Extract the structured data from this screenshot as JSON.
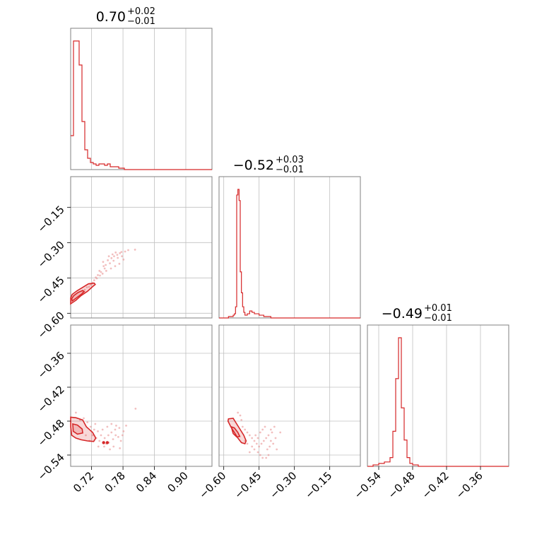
{
  "chart_data": {
    "type": "corner",
    "color": "#d62728",
    "titles": [
      {
        "value": "0.70",
        "upper": "+0.02",
        "lower": "−0.01"
      },
      {
        "value": "−0.52",
        "upper": "+0.03",
        "lower": "−0.01"
      },
      {
        "value": "−0.49",
        "upper": "+0.01",
        "lower": "−0.01"
      }
    ],
    "params": [
      {
        "range": [
          0.68,
          0.95
        ],
        "ticks": [
          0.72,
          0.78,
          0.84,
          0.9
        ],
        "tick_labels": [
          "0.72",
          "0.78",
          "0.84",
          "0.90"
        ]
      },
      {
        "range": [
          -0.62,
          -0.02
        ],
        "ticks": [
          -0.6,
          -0.45,
          -0.3,
          -0.15
        ],
        "tick_labels": [
          "−0.60",
          "−0.45",
          "−0.30",
          "−0.15"
        ]
      },
      {
        "range": [
          -0.56,
          -0.31
        ],
        "ticks": [
          -0.54,
          -0.48,
          -0.42,
          -0.36
        ],
        "tick_labels": [
          "−0.54",
          "−0.48",
          "−0.42",
          "−0.36"
        ]
      }
    ],
    "diagonal_hists": [
      {
        "param": 0,
        "peak_values": [
          0.692,
          0.698,
          0.704
        ],
        "edges": [
          0.68,
          0.6854,
          0.6908,
          0.6962,
          0.7016,
          0.707,
          0.7124,
          0.7178,
          0.7232,
          0.7286,
          0.734,
          0.7394,
          0.7448,
          0.7502,
          0.7556,
          0.761,
          0.7664,
          0.7718,
          0.7772,
          0.7826,
          0.788,
          0.95
        ],
        "counts": [
          24,
          91,
          91,
          74,
          34,
          14,
          8,
          5,
          4,
          3,
          4,
          4,
          3,
          4,
          2,
          2,
          2,
          1,
          1,
          0,
          0
        ]
      },
      {
        "param": 1,
        "edges": [
          -0.62,
          -0.6,
          -0.58,
          -0.56,
          -0.555,
          -0.55,
          -0.545,
          -0.54,
          -0.535,
          -0.53,
          -0.525,
          -0.52,
          -0.515,
          -0.51,
          -0.505,
          -0.5,
          -0.495,
          -0.49,
          -0.485,
          -0.48,
          -0.47,
          -0.46,
          -0.45,
          -0.44,
          -0.43,
          -0.42,
          -0.41,
          -0.4,
          -0.38,
          -0.02
        ],
        "counts": [
          0,
          0,
          1,
          2,
          3,
          8,
          88,
          92,
          84,
          33,
          18,
          8,
          4,
          2,
          2,
          3,
          3,
          5,
          5,
          4,
          3,
          3,
          2,
          2,
          1,
          1,
          1,
          0,
          0
        ]
      },
      {
        "param": 2,
        "edges": [
          -0.56,
          -0.55,
          -0.545,
          -0.54,
          -0.535,
          -0.53,
          -0.525,
          -0.52,
          -0.515,
          -0.51,
          -0.505,
          -0.5,
          -0.495,
          -0.49,
          -0.485,
          -0.48,
          -0.475,
          -0.47,
          -0.46,
          -0.31
        ],
        "counts": [
          0,
          1,
          1,
          2,
          2,
          3,
          3,
          6,
          24,
          60,
          88,
          40,
          18,
          6,
          2,
          1,
          1,
          0,
          0
        ]
      }
    ],
    "scatter_panels": [
      {
        "x_param": 0,
        "y_param": 1,
        "samples": [
          [
            0.742,
            -0.382
          ],
          [
            0.751,
            -0.375
          ],
          [
            0.758,
            -0.366
          ],
          [
            0.763,
            -0.358
          ],
          [
            0.769,
            -0.352
          ],
          [
            0.774,
            -0.345
          ],
          [
            0.778,
            -0.358
          ],
          [
            0.781,
            -0.372
          ],
          [
            0.773,
            -0.39
          ],
          [
            0.765,
            -0.4
          ],
          [
            0.757,
            -0.41
          ],
          [
            0.748,
            -0.42
          ],
          [
            0.741,
            -0.432
          ],
          [
            0.736,
            -0.44
          ],
          [
            0.73,
            -0.452
          ],
          [
            0.725,
            -0.46
          ],
          [
            0.747,
            -0.395
          ],
          [
            0.755,
            -0.388
          ],
          [
            0.762,
            -0.377
          ],
          [
            0.77,
            -0.365
          ],
          [
            0.777,
            -0.34
          ],
          [
            0.784,
            -0.338
          ],
          [
            0.79,
            -0.332
          ],
          [
            0.745,
            -0.41
          ],
          [
            0.738,
            -0.425
          ],
          [
            0.732,
            -0.438
          ],
          [
            0.728,
            -0.448
          ],
          [
            0.722,
            -0.47
          ],
          [
            0.718,
            -0.478
          ],
          [
            0.715,
            -0.488
          ],
          [
            0.76,
            -0.35
          ],
          [
            0.766,
            -0.342
          ],
          [
            0.753,
            -0.358
          ],
          [
            0.735,
            -0.42
          ],
          [
            0.743,
            -0.4
          ],
          [
            0.803,
            -0.33
          ],
          [
            0.711,
            -0.49
          ],
          [
            0.707,
            -0.5
          ],
          [
            0.703,
            -0.51
          ],
          [
            0.72,
            -0.475
          ]
        ],
        "contours": [
          [
            [
              0.68,
              -0.56
            ],
            [
              0.69,
              -0.545
            ],
            [
              0.7,
              -0.525
            ],
            [
              0.712,
              -0.507
            ],
            [
              0.722,
              -0.487
            ],
            [
              0.727,
              -0.478
            ],
            [
              0.725,
              -0.472
            ],
            [
              0.714,
              -0.475
            ],
            [
              0.703,
              -0.49
            ],
            [
              0.692,
              -0.505
            ],
            [
              0.683,
              -0.52
            ],
            [
              0.68,
              -0.535
            ]
          ],
          [
            [
              0.683,
              -0.548
            ],
            [
              0.691,
              -0.535
            ],
            [
              0.7,
              -0.52
            ],
            [
              0.706,
              -0.508
            ],
            [
              0.703,
              -0.503
            ],
            [
              0.694,
              -0.512
            ],
            [
              0.686,
              -0.525
            ],
            [
              0.682,
              -0.538
            ]
          ]
        ]
      },
      {
        "x_param": 0,
        "y_param": 2,
        "samples": [
          [
            0.705,
            -0.475
          ],
          [
            0.712,
            -0.482
          ],
          [
            0.718,
            -0.49
          ],
          [
            0.725,
            -0.495
          ],
          [
            0.732,
            -0.498
          ],
          [
            0.738,
            -0.505
          ],
          [
            0.745,
            -0.51
          ],
          [
            0.752,
            -0.505
          ],
          [
            0.758,
            -0.5
          ],
          [
            0.765,
            -0.495
          ],
          [
            0.771,
            -0.508
          ],
          [
            0.776,
            -0.515
          ],
          [
            0.781,
            -0.498
          ],
          [
            0.762,
            -0.525
          ],
          [
            0.755,
            -0.53
          ],
          [
            0.748,
            -0.52
          ],
          [
            0.741,
            -0.495
          ],
          [
            0.735,
            -0.515
          ],
          [
            0.729,
            -0.51
          ],
          [
            0.722,
            -0.505
          ],
          [
            0.716,
            -0.515
          ],
          [
            0.709,
            -0.505
          ],
          [
            0.767,
            -0.488
          ],
          [
            0.773,
            -0.492
          ],
          [
            0.779,
            -0.505
          ],
          [
            0.758,
            -0.485
          ],
          [
            0.75,
            -0.49
          ],
          [
            0.786,
            -0.488
          ],
          [
            0.744,
            -0.525
          ],
          [
            0.733,
            -0.525
          ],
          [
            0.727,
            -0.485
          ],
          [
            0.804,
            -0.458
          ],
          [
            0.69,
            -0.465
          ],
          [
            0.698,
            -0.478
          ],
          [
            0.774,
            -0.528
          ],
          [
            0.761,
            -0.512
          ],
          [
            0.753,
            -0.518
          ],
          [
            0.766,
            -0.505
          ]
        ],
        "contours": [
          [
            [
              0.68,
              -0.473
            ],
            [
              0.69,
              -0.474
            ],
            [
              0.703,
              -0.478
            ],
            [
              0.71,
              -0.49
            ],
            [
              0.722,
              -0.5
            ],
            [
              0.728,
              -0.51
            ],
            [
              0.724,
              -0.516
            ],
            [
              0.712,
              -0.515
            ],
            [
              0.7,
              -0.513
            ],
            [
              0.69,
              -0.51
            ],
            [
              0.682,
              -0.505
            ],
            [
              0.68,
              -0.49
            ]
          ],
          [
            [
              0.684,
              -0.485
            ],
            [
              0.693,
              -0.487
            ],
            [
              0.702,
              -0.494
            ],
            [
              0.703,
              -0.501
            ],
            [
              0.693,
              -0.503
            ],
            [
              0.685,
              -0.498
            ]
          ]
        ],
        "points": [
          [
            0.743,
            -0.518
          ],
          [
            0.75,
            -0.518
          ]
        ]
      },
      {
        "x_param": 1,
        "y_param": 2,
        "samples": [
          [
            -0.52,
            -0.49
          ],
          [
            -0.51,
            -0.495
          ],
          [
            -0.5,
            -0.5
          ],
          [
            -0.49,
            -0.505
          ],
          [
            -0.48,
            -0.51
          ],
          [
            -0.47,
            -0.515
          ],
          [
            -0.46,
            -0.52
          ],
          [
            -0.45,
            -0.525
          ],
          [
            -0.44,
            -0.52
          ],
          [
            -0.43,
            -0.515
          ],
          [
            -0.42,
            -0.51
          ],
          [
            -0.41,
            -0.505
          ],
          [
            -0.4,
            -0.515
          ],
          [
            -0.39,
            -0.52
          ],
          [
            -0.38,
            -0.51
          ],
          [
            -0.445,
            -0.5
          ],
          [
            -0.435,
            -0.495
          ],
          [
            -0.425,
            -0.49
          ],
          [
            -0.455,
            -0.535
          ],
          [
            -0.445,
            -0.54
          ],
          [
            -0.415,
            -0.53
          ],
          [
            -0.405,
            -0.525
          ],
          [
            -0.395,
            -0.5
          ],
          [
            -0.385,
            -0.49
          ],
          [
            -0.47,
            -0.53
          ],
          [
            -0.48,
            -0.525
          ],
          [
            -0.49,
            -0.535
          ],
          [
            -0.5,
            -0.52
          ],
          [
            -0.51,
            -0.515
          ],
          [
            -0.54,
            -0.465
          ],
          [
            -0.53,
            -0.47
          ],
          [
            -0.525,
            -0.478
          ],
          [
            -0.465,
            -0.505
          ],
          [
            -0.455,
            -0.51
          ],
          [
            -0.42,
            -0.545
          ],
          [
            -0.41,
            -0.54
          ],
          [
            -0.375,
            -0.53
          ],
          [
            -0.36,
            -0.5
          ],
          [
            -0.435,
            -0.545
          ],
          [
            -0.4,
            -0.495
          ]
        ],
        "contours": [
          [
            [
              -0.58,
              -0.476
            ],
            [
              -0.56,
              -0.475
            ],
            [
              -0.545,
              -0.485
            ],
            [
              -0.53,
              -0.495
            ],
            [
              -0.515,
              -0.505
            ],
            [
              -0.505,
              -0.515
            ],
            [
              -0.51,
              -0.52
            ],
            [
              -0.525,
              -0.518
            ],
            [
              -0.54,
              -0.51
            ],
            [
              -0.555,
              -0.5
            ],
            [
              -0.57,
              -0.49
            ],
            [
              -0.582,
              -0.48
            ]
          ],
          [
            [
              -0.568,
              -0.49
            ],
            [
              -0.555,
              -0.492
            ],
            [
              -0.54,
              -0.5
            ],
            [
              -0.532,
              -0.507
            ],
            [
              -0.545,
              -0.508
            ],
            [
              -0.56,
              -0.502
            ]
          ]
        ]
      }
    ]
  }
}
